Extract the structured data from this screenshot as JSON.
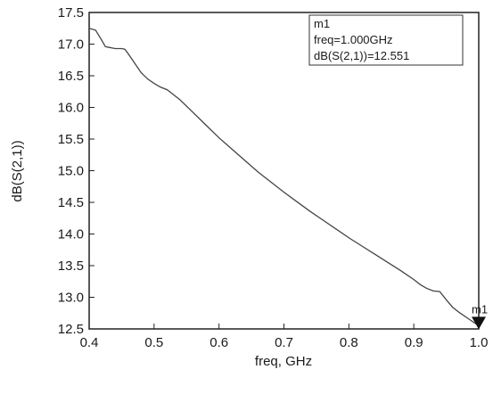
{
  "chart_data": {
    "type": "line",
    "xlabel": "freq, GHz",
    "ylabel": "dB(S(2,1))",
    "xlim": [
      0.4,
      1.0
    ],
    "ylim": [
      12.5,
      17.5
    ],
    "xticks": [
      "0.4",
      "0.5",
      "0.6",
      "0.7",
      "0.8",
      "0.9",
      "1.0"
    ],
    "yticks": [
      "12.5",
      "13.0",
      "13.5",
      "14.0",
      "14.5",
      "15.0",
      "15.5",
      "16.0",
      "16.5",
      "17.0",
      "17.5"
    ],
    "grid": false,
    "series": [
      {
        "x": [
          0.4,
          0.41,
          0.42,
          0.425,
          0.43,
          0.44,
          0.45,
          0.455,
          0.46,
          0.47,
          0.48,
          0.49,
          0.5,
          0.51,
          0.52,
          0.53,
          0.54,
          0.56,
          0.58,
          0.6,
          0.62,
          0.64,
          0.66,
          0.68,
          0.7,
          0.72,
          0.74,
          0.76,
          0.78,
          0.8,
          0.82,
          0.84,
          0.86,
          0.88,
          0.9,
          0.91,
          0.92,
          0.93,
          0.94,
          0.95,
          0.96,
          0.97,
          0.98,
          0.99,
          1.0
        ],
        "y": [
          17.25,
          17.22,
          17.05,
          16.96,
          16.95,
          16.93,
          16.93,
          16.92,
          16.85,
          16.7,
          16.55,
          16.45,
          16.38,
          16.32,
          16.28,
          16.2,
          16.12,
          15.92,
          15.72,
          15.52,
          15.34,
          15.16,
          14.98,
          14.82,
          14.66,
          14.51,
          14.36,
          14.22,
          14.08,
          13.94,
          13.81,
          13.68,
          13.55,
          13.42,
          13.28,
          13.2,
          13.14,
          13.1,
          13.09,
          12.96,
          12.84,
          12.76,
          12.69,
          12.62,
          12.551
        ]
      }
    ],
    "marker": {
      "name": "m1",
      "freq_text": "freq=1.000GHz",
      "value_text": "dB(S(2,1))=12.551",
      "x": 1.0,
      "y": 12.551
    },
    "line_color": "#444444",
    "axis_color": "#222222"
  }
}
